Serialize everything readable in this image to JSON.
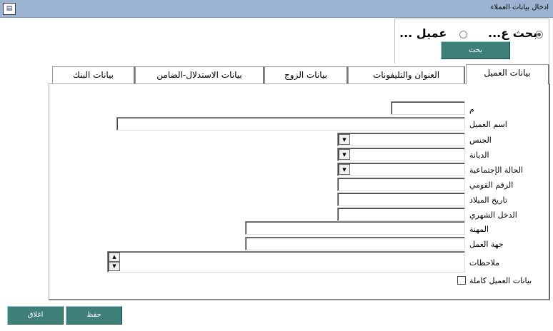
{
  "window": {
    "title": "ادخال بيانات العملاء",
    "icon": "form-app-icon"
  },
  "search": {
    "options": [
      {
        "label": "بحث ع...",
        "selected": true
      },
      {
        "label": "عميل ...",
        "selected": false
      }
    ],
    "button": "بحث"
  },
  "tabs": [
    {
      "label": "بيانات العميل",
      "active": true
    },
    {
      "label": "العنوان والتليفونات"
    },
    {
      "label": "بيانات الزوج"
    },
    {
      "label": "بيانات الاستدلال-الضامن"
    },
    {
      "label": "بيانات البنك"
    }
  ],
  "form": {
    "id_label": "م",
    "id_value": "",
    "name_label": "اسم العميل",
    "name_value": "",
    "gender_label": "الجنس",
    "gender_value": "",
    "religion_label": "الديانة",
    "religion_value": "",
    "marital_label": "الحالة الإجتماعية",
    "marital_value": "",
    "national_id_label": "الرقم القومي",
    "national_id_value": "",
    "birthdate_label": "تاريخ الميلاد",
    "birthdate_value": "",
    "income_label": "الدخل الشهري",
    "income_value": "",
    "job_label": "المهنة",
    "job_value": "",
    "employer_label": "جهة العمل",
    "employer_value": "",
    "notes_label": "ملاحظات",
    "notes_value": "",
    "complete_label": "بيانات العميل كاملة",
    "complete_checked": false
  },
  "buttons": {
    "save": "حفظ",
    "close": "اغلاق"
  },
  "colors": {
    "titlebar": "#9cb4d2",
    "button": "#3f7f7a"
  }
}
